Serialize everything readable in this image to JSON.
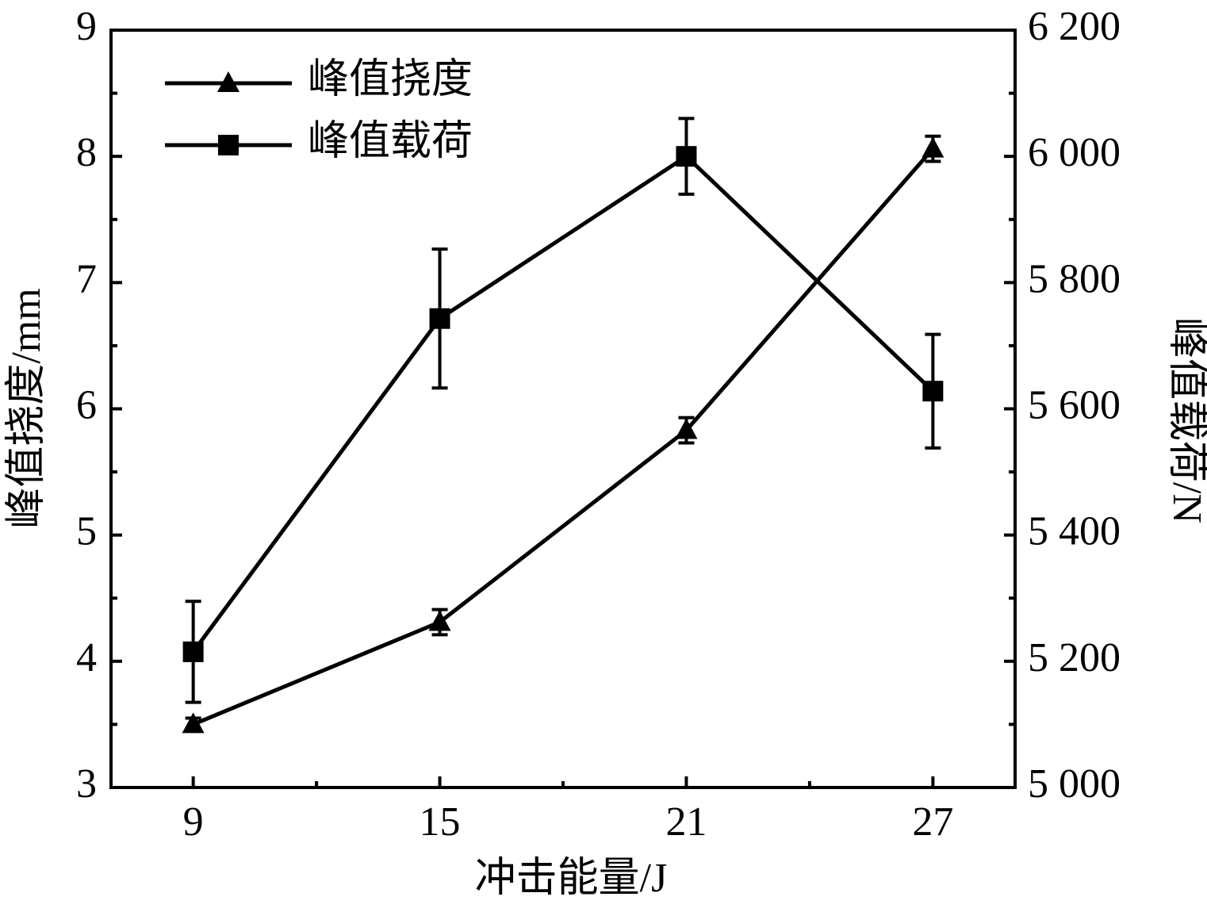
{
  "chart_data": {
    "type": "line",
    "x_label": "冲击能量/J",
    "y_label": "峰值挠度/mm",
    "y2_label": "峰值载荷/N",
    "x": [
      9,
      15,
      21,
      27
    ],
    "xlim": [
      7,
      29
    ],
    "xticks": [
      9,
      15,
      21,
      27
    ],
    "ylim": [
      3,
      9
    ],
    "yticks": [
      3,
      4,
      5,
      6,
      7,
      8,
      9
    ],
    "y2lim": [
      5000,
      6200
    ],
    "y2ticks": [
      {
        "value": 5000,
        "label": "5 000"
      },
      {
        "value": 5200,
        "label": "5 200"
      },
      {
        "value": 5400,
        "label": "5 400"
      },
      {
        "value": 5600,
        "label": "5 600"
      },
      {
        "value": 5800,
        "label": "5 800"
      },
      {
        "value": 6000,
        "label": "6 000"
      },
      {
        "value": 6200,
        "label": "6 200"
      }
    ],
    "legend": "upper left",
    "series": [
      {
        "name": "峰值挠度",
        "color": "#000000",
        "marker": "triangle",
        "values": [
          3.5,
          4.31,
          5.83,
          8.06
        ],
        "errors": [
          0.05,
          0.1,
          0.1,
          0.1
        ]
      },
      {
        "name": "峰值载荷",
        "color": "#000000",
        "marker": "square",
        "axis": "y2",
        "values": [
          5215,
          5743,
          6000,
          5628
        ],
        "errors": [
          80,
          110,
          60,
          90
        ]
      }
    ]
  }
}
